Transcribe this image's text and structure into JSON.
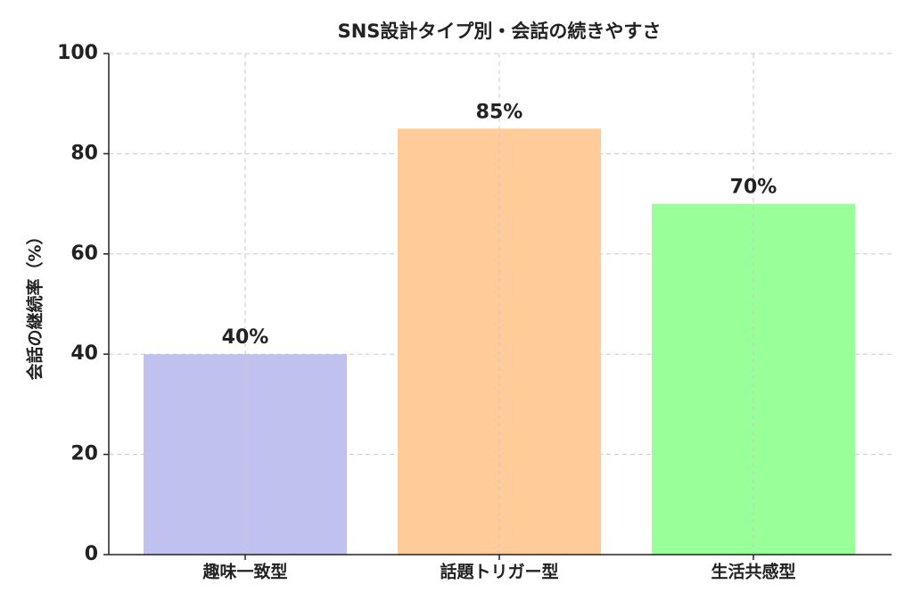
{
  "chart_data": {
    "type": "bar",
    "title": "SNS設計タイプ別・会話の続きやすさ",
    "ylabel": "会話の継続率（%）",
    "categories": [
      "趣味一致型",
      "話題トリガー型",
      "生活共感型"
    ],
    "values": [
      40,
      85,
      70
    ],
    "value_labels": [
      "40%",
      "85%",
      "70%"
    ],
    "colors": [
      "#c1c1f0",
      "#ffcc99",
      "#99ff99"
    ],
    "ylim": [
      0,
      100
    ],
    "yticks": [
      0,
      20,
      40,
      60,
      80,
      100
    ],
    "grid": true
  }
}
